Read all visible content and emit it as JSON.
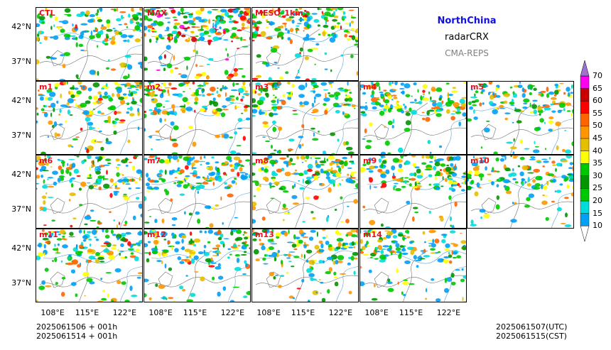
{
  "header": {
    "region": "NorthChina",
    "variable": "radarCRX",
    "system": "CMA-REPS"
  },
  "footer": {
    "left_line1": "2025061506  +  001h",
    "left_line2": "2025061514  +  001h",
    "right_line1": "2025061507(UTC)",
    "right_line2": "2025061515(CST)"
  },
  "chart_data": {
    "type": "heatmap",
    "panels": [
      {
        "label": "CTL",
        "intensity": 0.55
      },
      {
        "label": "MAX",
        "intensity": 0.95
      },
      {
        "label": "MESO_1km",
        "intensity": 0.75
      },
      {
        "label": "m1",
        "intensity": 0.6
      },
      {
        "label": "m2",
        "intensity": 0.6
      },
      {
        "label": "m3",
        "intensity": 0.55
      },
      {
        "label": "m4",
        "intensity": 0.55
      },
      {
        "label": "m5",
        "intensity": 0.5
      },
      {
        "label": "m6",
        "intensity": 0.6
      },
      {
        "label": "m7",
        "intensity": 0.6
      },
      {
        "label": "m8",
        "intensity": 0.6
      },
      {
        "label": "m9",
        "intensity": 0.55
      },
      {
        "label": "m10",
        "intensity": 0.5
      },
      {
        "label": "m11",
        "intensity": 0.55
      },
      {
        "label": "m12",
        "intensity": 0.55
      },
      {
        "label": "m13",
        "intensity": 0.55
      },
      {
        "label": "m14",
        "intensity": 0.5
      }
    ],
    "x_ticks": [
      "108°E",
      "115°E",
      "122°E"
    ],
    "y_ticks": [
      "42°N",
      "37°N"
    ],
    "x_range": [
      104,
      125
    ],
    "y_range": [
      33,
      44
    ],
    "colorbar": {
      "ticks": [
        "10",
        "15",
        "20",
        "25",
        "30",
        "35",
        "40",
        "45",
        "50",
        "55",
        "60",
        "65",
        "70"
      ],
      "colors": [
        "#00a0f5",
        "#00dcdc",
        "#00c800",
        "#009600",
        "#00c800",
        "#ffff00",
        "#e6be00",
        "#ff9600",
        "#ff6400",
        "#ff0000",
        "#c80000",
        "#ff00f0",
        "#9600b4"
      ],
      "extend": "both"
    }
  }
}
